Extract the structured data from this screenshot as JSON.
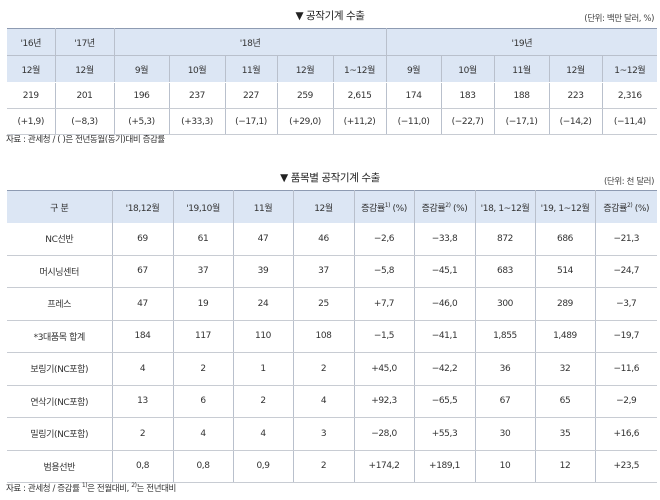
{
  "table1": {
    "title": "▼ 공작기계 수출",
    "unit": "(단위: 백만 달러, %)",
    "years": [
      "'16년",
      "'17년",
      "'18년",
      "'19년"
    ],
    "months": [
      "12월",
      "12월",
      "9월",
      "10월",
      "11월",
      "12월",
      "1~12월",
      "9월",
      "10월",
      "11월",
      "12월",
      "1~12월"
    ],
    "values": [
      "219",
      "201",
      "196",
      "237",
      "227",
      "259",
      "2,615",
      "174",
      "183",
      "188",
      "223",
      "2,316"
    ],
    "changes": [
      "(+1,9)",
      "(−8,3)",
      "(+5,3)",
      "(+33,3)",
      "(−17,1)",
      "(+29,0)",
      "(+11,2)",
      "(−11,0)",
      "(−22,7)",
      "(−17,1)",
      "(−14,2)",
      "(−11,4)"
    ],
    "note": "자료 : 관세청 / (  )은 전년동월(동기)대비 증감률"
  },
  "table2": {
    "title": "▼ 품목별 공작기계 수출",
    "unit": "(단위: 천 달러)",
    "headers": [
      "구 분",
      "'18,12월",
      "'19,10월",
      "11월",
      "12월",
      "증감률",
      "(%)",
      "증감률",
      "(%)",
      "'18, 1~12월",
      "'19, 1~12월",
      "증감률",
      "(%)"
    ],
    "sup1": "1)",
    "sup2": "2)",
    "rows": [
      [
        "NC선반",
        "69",
        "61",
        "47",
        "46",
        "−2,6",
        "−33,8",
        "872",
        "686",
        "−21,3"
      ],
      [
        "머시닝센터",
        "67",
        "37",
        "39",
        "37",
        "−5,8",
        "−45,1",
        "683",
        "514",
        "−24,7"
      ],
      [
        "프레스",
        "47",
        "19",
        "24",
        "25",
        "+7,7",
        "−46,0",
        "300",
        "289",
        "−3,7"
      ],
      [
        "*3대품목 합계",
        "184",
        "117",
        "110",
        "108",
        "−1,5",
        "−41,1",
        "1,855",
        "1,489",
        "−19,7"
      ],
      [
        "보링기(NC포함)",
        "4",
        "2",
        "1",
        "2",
        "+45,0",
        "−42,2",
        "36",
        "32",
        "−11,6"
      ],
      [
        "연삭기(NC포함)",
        "13",
        "6",
        "2",
        "4",
        "+92,3",
        "−65,5",
        "67",
        "65",
        "−2,9"
      ],
      [
        "밀링기(NC포함)",
        "2",
        "4",
        "4",
        "3",
        "−28,0",
        "+55,3",
        "30",
        "35",
        "+16,6"
      ],
      [
        "범용선반",
        "0,8",
        "0,8",
        "0,9",
        "2",
        "+174,2",
        "+189,1",
        "10",
        "12",
        "+23,5"
      ]
    ],
    "note_a": "자료 : 관세청  / 증감률 ",
    "note_b": "은 전월대비, ",
    "note_c": "는 전년대비"
  },
  "colors": {
    "header_bg": "#dce6f4",
    "border": "#8e9bb2"
  }
}
